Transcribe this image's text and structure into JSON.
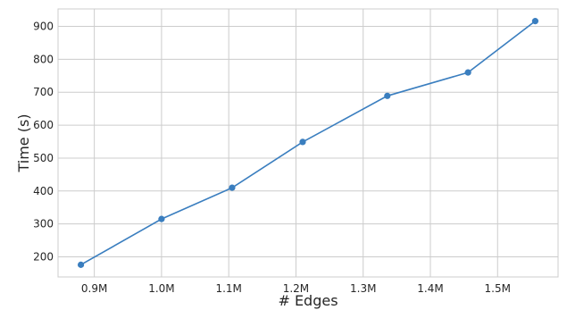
{
  "chart_data": {
    "type": "line",
    "title": "",
    "xlabel": "# Edges",
    "ylabel": "Time (s)",
    "x": [
      880000,
      1000000,
      1105000,
      1210000,
      1336000,
      1456000,
      1556000
    ],
    "series": [
      {
        "values": [
          176,
          315,
          410,
          549,
          689,
          760,
          916
        ]
      }
    ],
    "xticks": [
      {
        "value": 900000,
        "label": "0.9M"
      },
      {
        "value": 1000000,
        "label": "1.0M"
      },
      {
        "value": 1100000,
        "label": "1.1M"
      },
      {
        "value": 1200000,
        "label": "1.2M"
      },
      {
        "value": 1300000,
        "label": "1.3M"
      },
      {
        "value": 1400000,
        "label": "1.4M"
      },
      {
        "value": 1500000,
        "label": "1.5M"
      }
    ],
    "yticks": [
      {
        "value": 200,
        "label": "200"
      },
      {
        "value": 300,
        "label": "300"
      },
      {
        "value": 400,
        "label": "400"
      },
      {
        "value": 500,
        "label": "500"
      },
      {
        "value": 600,
        "label": "600"
      },
      {
        "value": 700,
        "label": "700"
      },
      {
        "value": 800,
        "label": "800"
      },
      {
        "value": 900,
        "label": "900"
      }
    ],
    "xlim": [
      846000,
      1590000
    ],
    "ylim": [
      139,
      953
    ],
    "grid": true,
    "legend": "none",
    "colors": {
      "line": "#3a7ebf",
      "grid": "#cccccc",
      "text": "#262626"
    }
  }
}
